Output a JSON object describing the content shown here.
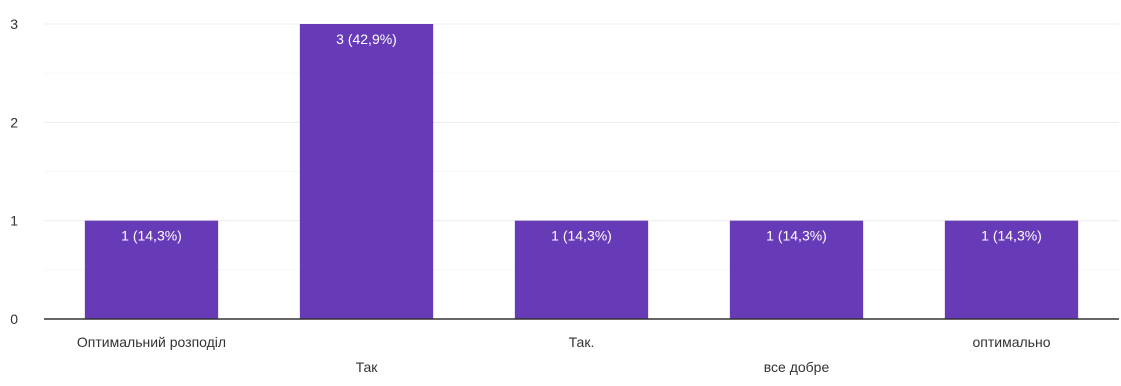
{
  "chart_data": {
    "type": "bar",
    "categories": [
      "Оптимальний розподіл",
      "Так",
      "Так.",
      "все добре",
      "оптимально"
    ],
    "values": [
      1,
      3,
      1,
      1,
      1
    ],
    "data_labels": [
      "1 (14,3%)",
      "3 (42,9%)",
      "1 (14,3%)",
      "1 (14,3%)",
      "1 (14,3%)"
    ],
    "y_ticks": [
      "0",
      "1",
      "2",
      "3"
    ],
    "ylim": [
      0,
      3
    ],
    "grid": true,
    "legend": false,
    "title": "",
    "xlabel": "",
    "ylabel": "",
    "colors": {
      "bar": "#673ab7",
      "grid_major": "#ececec",
      "grid_minor": "#f6f6f6",
      "axis": "#333333",
      "tick_text": "#333333",
      "data_label": "#ffffff"
    }
  }
}
